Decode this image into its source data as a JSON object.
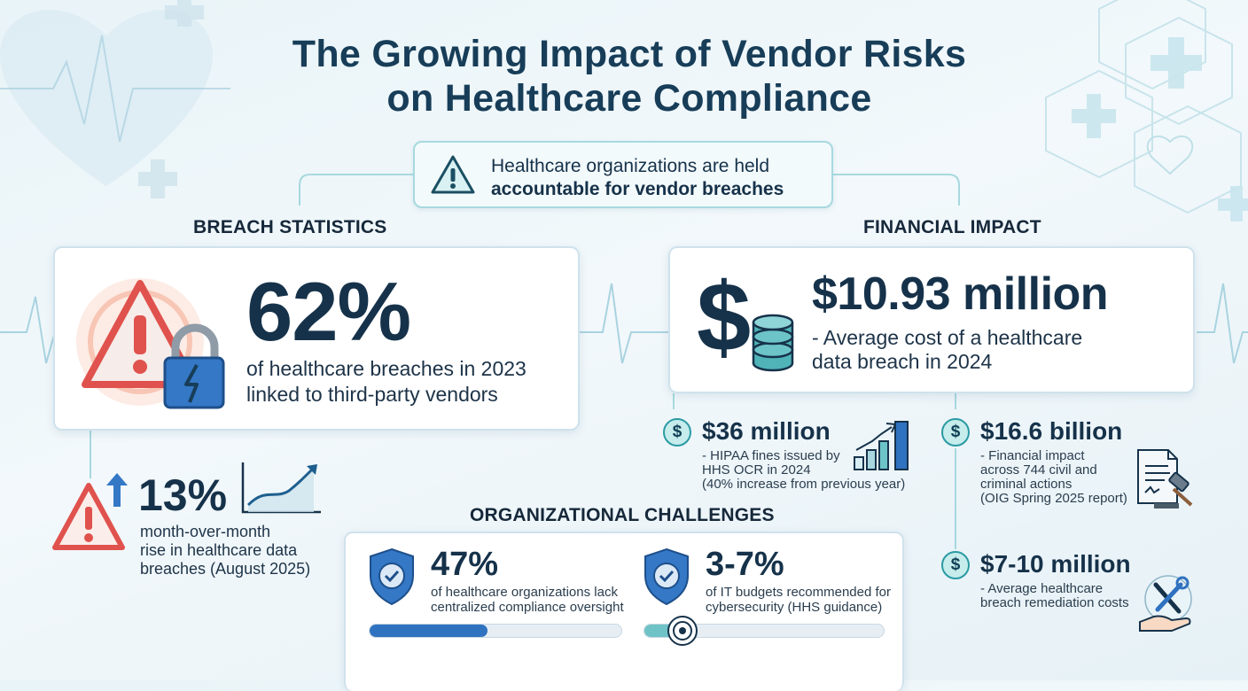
{
  "title": {
    "line1": "The Growing Impact of Vendor Risks",
    "line2": "on Healthcare Compliance"
  },
  "notice": {
    "line1": "Healthcare organizations are held",
    "line2": "accountable for vendor breaches",
    "icon": "warning-triangle-icon"
  },
  "breach": {
    "heading": "BREACH STATISTICS",
    "main": {
      "value": "62%",
      "line1": "of healthcare breaches in 2023",
      "line2": "linked to third-party vendors"
    },
    "secondary": {
      "value": "13%",
      "line1": "month-over-month",
      "line2": "rise in healthcare data",
      "line3": "breaches (August 2025)"
    }
  },
  "financial": {
    "heading": "FINANCIAL IMPACT",
    "main": {
      "value": "$10.93 million",
      "line1": "- Average cost of a healthcare",
      "line2": "data breach in 2024"
    },
    "fines": {
      "value": "$36 million",
      "line1": "- HIPAA fines issued by",
      "line2": "HHS OCR in 2024",
      "line3": "(40% increase from previous year)"
    },
    "actions": {
      "value": "$16.6 billion",
      "line1": "- Financial impact",
      "line2": "across 744 civil and",
      "line3": "criminal actions",
      "line4": "(OIG Spring 2025 report)"
    },
    "remediation": {
      "value": "$7-10 million",
      "line1": "- Average healthcare",
      "line2": "breach remediation costs"
    },
    "coin_symbol": "$"
  },
  "challenges": {
    "heading": "ORGANIZATIONAL CHALLENGES",
    "items": [
      {
        "value": "47%",
        "line1": "of healthcare organizations lack",
        "line2": "centralized compliance oversight",
        "progress": 0.47
      },
      {
        "value": "3-7%",
        "line1": "of IT budgets recommended for",
        "line2": "cybersecurity (HHS guidance)",
        "progress": 0.15
      }
    ]
  },
  "colors": {
    "primary_text": "#16324a",
    "accent_teal": "#2b9aa3",
    "warning_red": "#e0524d",
    "lock_blue": "#3478c6",
    "progress_blue": "#2f72c0",
    "progress_teal": "#6fc3c6"
  }
}
